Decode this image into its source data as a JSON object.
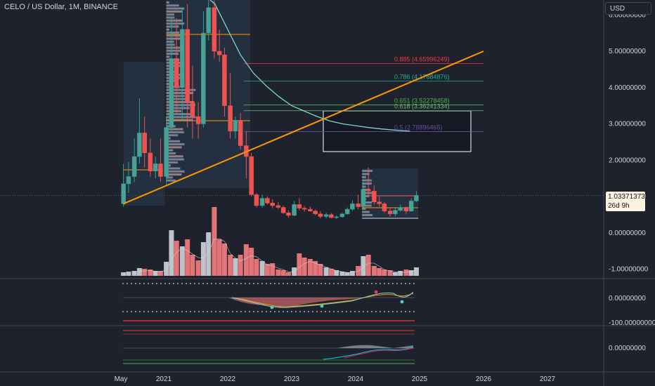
{
  "header": {
    "symbol_title": "CELO / US Dollar, 1M, BINANCE"
  },
  "price_scale": {
    "currency_label": "USD",
    "ticks": [
      {
        "label": "6.00000000",
        "v": 6
      },
      {
        "label": "5.00000000",
        "v": 5
      },
      {
        "label": "4.00000000",
        "v": 4
      },
      {
        "label": "3.00000000",
        "v": 3
      },
      {
        "label": "2.00000000",
        "v": 2
      },
      {
        "label": "1.00000000",
        "v": 1
      },
      {
        "label": "0.00000000",
        "v": 0
      },
      {
        "label": "-1.00000000",
        "v": -1
      }
    ],
    "current_price": "1.03371373",
    "countdown": "26d 9h"
  },
  "panes": {
    "oscillator_1": {
      "tick_label": "0.00000000",
      "tick2_label": "-100.00000000"
    },
    "oscillator_2": {
      "tick_label": "0.00000000"
    }
  },
  "time_axis": {
    "labels": [
      {
        "label": "May",
        "t": 2020.33
      },
      {
        "label": "2021",
        "t": 2021
      },
      {
        "label": "2022",
        "t": 2022
      },
      {
        "label": "2023",
        "t": 2023
      },
      {
        "label": "2024",
        "t": 2024
      },
      {
        "label": "2025",
        "t": 2025
      },
      {
        "label": "2026",
        "t": 2026
      },
      {
        "label": "2027",
        "t": 2027
      }
    ]
  },
  "colors": {
    "up": "#26a69a",
    "down": "#ef5350",
    "up_body": "#6fbfb0",
    "down_body": "#d9534f",
    "fib_0885": "#f23645",
    "fib_0786": "#22ab94",
    "fib_0651": "#4caf50",
    "fib_0618": "#66bb6a",
    "fib_05": "#5c3c8c",
    "trendline": "#ff9800",
    "ma": "#7fd6c8",
    "poc": "#ff9800"
  },
  "chart_data": {
    "type": "candlestick",
    "title": "CELO / US Dollar, 1M, BINANCE",
    "y_range": [
      -1.2,
      6.3
    ],
    "x_range": [
      2020.25,
      2027.7
    ],
    "candles": [
      {
        "t": 2020.37,
        "o": 0.8,
        "h": 1.9,
        "l": 0.72,
        "c": 1.35
      },
      {
        "t": 2020.45,
        "o": 1.35,
        "h": 1.95,
        "l": 1.1,
        "c": 1.55
      },
      {
        "t": 2020.54,
        "o": 1.55,
        "h": 2.6,
        "l": 1.4,
        "c": 2.1
      },
      {
        "t": 2020.62,
        "o": 2.1,
        "h": 3.7,
        "l": 1.9,
        "c": 2.75
      },
      {
        "t": 2020.7,
        "o": 2.75,
        "h": 3.2,
        "l": 1.8,
        "c": 2.2
      },
      {
        "t": 2020.79,
        "o": 2.2,
        "h": 2.6,
        "l": 1.55,
        "c": 1.7
      },
      {
        "t": 2020.87,
        "o": 1.7,
        "h": 2.1,
        "l": 1.5,
        "c": 1.9
      },
      {
        "t": 2020.95,
        "o": 1.9,
        "h": 2.6,
        "l": 1.4,
        "c": 1.55
      },
      {
        "t": 2021.04,
        "o": 1.55,
        "h": 3.2,
        "l": 1.3,
        "c": 2.9
      },
      {
        "t": 2021.12,
        "o": 2.9,
        "h": 5.9,
        "l": 2.8,
        "c": 4.8
      },
      {
        "t": 2021.2,
        "o": 4.8,
        "h": 5.9,
        "l": 3.3,
        "c": 4.0
      },
      {
        "t": 2021.29,
        "o": 4.0,
        "h": 6.2,
        "l": 3.1,
        "c": 5.6
      },
      {
        "t": 2021.37,
        "o": 5.6,
        "h": 6.3,
        "l": 2.9,
        "c": 3.6
      },
      {
        "t": 2021.45,
        "o": 3.6,
        "h": 4.6,
        "l": 2.6,
        "c": 3.2
      },
      {
        "t": 2021.54,
        "o": 3.2,
        "h": 3.6,
        "l": 2.6,
        "c": 3.0
      },
      {
        "t": 2021.62,
        "o": 3.0,
        "h": 6.1,
        "l": 2.9,
        "c": 5.5
      },
      {
        "t": 2021.7,
        "o": 5.5,
        "h": 6.6,
        "l": 5.3,
        "c": 6.2
      },
      {
        "t": 2021.79,
        "o": 6.2,
        "h": 6.4,
        "l": 4.8,
        "c": 5.0
      },
      {
        "t": 2021.87,
        "o": 5.0,
        "h": 5.6,
        "l": 4.7,
        "c": 4.9
      },
      {
        "t": 2021.95,
        "o": 4.9,
        "h": 5.1,
        "l": 3.2,
        "c": 3.5
      },
      {
        "t": 2022.04,
        "o": 3.5,
        "h": 4.4,
        "l": 2.6,
        "c": 2.8
      },
      {
        "t": 2022.12,
        "o": 2.8,
        "h": 3.2,
        "l": 2.6,
        "c": 3.1
      },
      {
        "t": 2022.2,
        "o": 3.1,
        "h": 3.3,
        "l": 2.3,
        "c": 2.4
      },
      {
        "t": 2022.29,
        "o": 2.4,
        "h": 2.8,
        "l": 1.5,
        "c": 2.1
      },
      {
        "t": 2022.37,
        "o": 2.1,
        "h": 2.2,
        "l": 1.0,
        "c": 1.05
      },
      {
        "t": 2022.45,
        "o": 1.05,
        "h": 1.1,
        "l": 0.7,
        "c": 0.75
      },
      {
        "t": 2022.54,
        "o": 0.75,
        "h": 1.05,
        "l": 0.7,
        "c": 0.95
      },
      {
        "t": 2022.62,
        "o": 0.95,
        "h": 1.0,
        "l": 0.78,
        "c": 0.82
      },
      {
        "t": 2022.7,
        "o": 0.82,
        "h": 0.92,
        "l": 0.68,
        "c": 0.75
      },
      {
        "t": 2022.79,
        "o": 0.75,
        "h": 0.85,
        "l": 0.65,
        "c": 0.7
      },
      {
        "t": 2022.87,
        "o": 0.7,
        "h": 0.75,
        "l": 0.52,
        "c": 0.55
      },
      {
        "t": 2022.95,
        "o": 0.55,
        "h": 0.62,
        "l": 0.42,
        "c": 0.48
      },
      {
        "t": 2023.04,
        "o": 0.48,
        "h": 0.88,
        "l": 0.46,
        "c": 0.78
      },
      {
        "t": 2023.12,
        "o": 0.78,
        "h": 0.95,
        "l": 0.62,
        "c": 0.68
      },
      {
        "t": 2023.2,
        "o": 0.68,
        "h": 0.74,
        "l": 0.58,
        "c": 0.65
      },
      {
        "t": 2023.29,
        "o": 0.65,
        "h": 0.72,
        "l": 0.58,
        "c": 0.6
      },
      {
        "t": 2023.37,
        "o": 0.6,
        "h": 0.64,
        "l": 0.48,
        "c": 0.52
      },
      {
        "t": 2023.45,
        "o": 0.52,
        "h": 0.6,
        "l": 0.4,
        "c": 0.45
      },
      {
        "t": 2023.54,
        "o": 0.45,
        "h": 0.55,
        "l": 0.4,
        "c": 0.5
      },
      {
        "t": 2023.62,
        "o": 0.5,
        "h": 0.54,
        "l": 0.4,
        "c": 0.42
      },
      {
        "t": 2023.7,
        "o": 0.42,
        "h": 0.48,
        "l": 0.38,
        "c": 0.44
      },
      {
        "t": 2023.79,
        "o": 0.44,
        "h": 0.55,
        "l": 0.42,
        "c": 0.52
      },
      {
        "t": 2023.87,
        "o": 0.52,
        "h": 0.7,
        "l": 0.5,
        "c": 0.65
      },
      {
        "t": 2023.95,
        "o": 0.65,
        "h": 0.9,
        "l": 0.6,
        "c": 0.8
      },
      {
        "t": 2024.04,
        "o": 0.8,
        "h": 1.05,
        "l": 0.65,
        "c": 0.72
      },
      {
        "t": 2024.12,
        "o": 0.72,
        "h": 1.4,
        "l": 0.7,
        "c": 1.2
      },
      {
        "t": 2024.2,
        "o": 1.2,
        "h": 1.8,
        "l": 1.0,
        "c": 1.15
      },
      {
        "t": 2024.29,
        "o": 1.15,
        "h": 1.3,
        "l": 0.78,
        "c": 0.85
      },
      {
        "t": 2024.37,
        "o": 0.85,
        "h": 1.0,
        "l": 0.72,
        "c": 0.8
      },
      {
        "t": 2024.45,
        "o": 0.8,
        "h": 0.85,
        "l": 0.55,
        "c": 0.6
      },
      {
        "t": 2024.54,
        "o": 0.6,
        "h": 0.7,
        "l": 0.45,
        "c": 0.52
      },
      {
        "t": 2024.62,
        "o": 0.52,
        "h": 0.68,
        "l": 0.45,
        "c": 0.62
      },
      {
        "t": 2024.7,
        "o": 0.62,
        "h": 0.78,
        "l": 0.58,
        "c": 0.7
      },
      {
        "t": 2024.79,
        "o": 0.7,
        "h": 0.72,
        "l": 0.52,
        "c": 0.6
      },
      {
        "t": 2024.87,
        "o": 0.6,
        "h": 0.95,
        "l": 0.58,
        "c": 0.88
      },
      {
        "t": 2024.95,
        "o": 0.88,
        "h": 1.15,
        "l": 0.85,
        "c": 1.03
      }
    ],
    "volume": [
      0.05,
      0.06,
      0.07,
      0.11,
      0.1,
      0.09,
      0.07,
      0.07,
      0.2,
      0.65,
      0.5,
      0.42,
      0.52,
      0.3,
      0.22,
      0.48,
      0.62,
      0.98,
      0.52,
      0.46,
      0.3,
      0.25,
      0.3,
      0.45,
      0.4,
      0.24,
      0.21,
      0.17,
      0.18,
      0.09,
      0.08,
      0.05,
      0.12,
      0.32,
      0.26,
      0.24,
      0.21,
      0.17,
      0.12,
      0.1,
      0.08,
      0.06,
      0.05,
      0.07,
      0.14,
      0.28,
      0.3,
      0.14,
      0.11,
      0.09,
      0.08,
      0.05,
      0.07,
      0.09,
      0.08,
      0.12
    ],
    "moving_average": [
      {
        "t": 2021.4,
        "v": 6.8
      },
      {
        "t": 2021.6,
        "v": 6.6
      },
      {
        "t": 2021.8,
        "v": 6.3
      },
      {
        "t": 2022.0,
        "v": 5.6
      },
      {
        "t": 2022.2,
        "v": 4.9
      },
      {
        "t": 2022.4,
        "v": 4.4
      },
      {
        "t": 2022.6,
        "v": 4.05
      },
      {
        "t": 2022.8,
        "v": 3.75
      },
      {
        "t": 2023.0,
        "v": 3.5
      },
      {
        "t": 2023.2,
        "v": 3.35
      },
      {
        "t": 2023.4,
        "v": 3.2
      },
      {
        "t": 2023.6,
        "v": 3.08
      },
      {
        "t": 2023.8,
        "v": 3.0
      },
      {
        "t": 2024.0,
        "v": 2.95
      },
      {
        "t": 2024.2,
        "v": 2.9
      },
      {
        "t": 2024.4,
        "v": 2.86
      },
      {
        "t": 2024.6,
        "v": 2.83
      },
      {
        "t": 2024.85,
        "v": 2.8
      }
    ],
    "fib_levels": [
      {
        "ratio": "0.885",
        "label": "0.885 (4.65996249)",
        "v": 4.65996249,
        "color": "#f23645"
      },
      {
        "ratio": "0.786",
        "label": "0.786 (4.17884876)",
        "v": 4.17884876,
        "color": "#22ab94"
      },
      {
        "ratio": "0.651",
        "label": "0.651 (3.52278458)",
        "v": 3.52278458,
        "color": "#4caf50"
      },
      {
        "ratio": "0.618",
        "label": "0.618 (3.36241334)",
        "v": 3.36241334,
        "color": "#66bb6a"
      },
      {
        "ratio": "0.5",
        "label": "0.5 (2.78896465)",
        "v": 2.78896465,
        "color": "#6a4fa0"
      }
    ],
    "trendline": {
      "t1": 2020.37,
      "v1": 0.8,
      "t2": 2026.0,
      "v2": 5.0
    }
  }
}
